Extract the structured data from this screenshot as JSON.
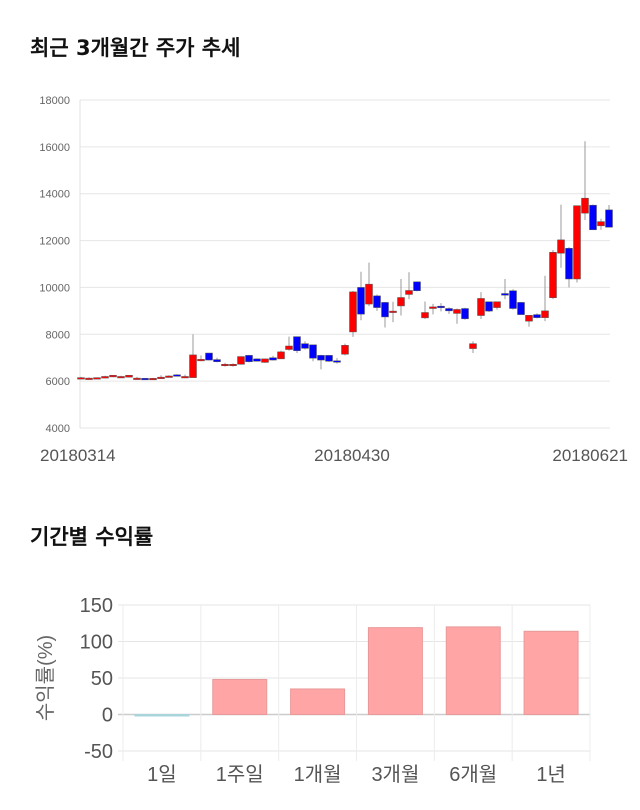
{
  "chart_data": [
    {
      "type": "candlestick",
      "title": "최근 3개월간 주가 추세",
      "ylim": [
        4000,
        18000
      ],
      "yticks": [
        "4000",
        "6000",
        "8000",
        "10000",
        "12000",
        "14000",
        "16000",
        "18000"
      ],
      "xtick_labels": [
        {
          "label": "20180314",
          "index": 0
        },
        {
          "label": "20180430",
          "index": 33
        },
        {
          "label": "20180621",
          "index": 66
        }
      ],
      "up_color": "#ff0000",
      "down_color": "#0000ff",
      "ohlc": [
        [
          6150,
          6180,
          6130,
          6150
        ],
        [
          6130,
          6160,
          6100,
          6130
        ],
        [
          6120,
          6160,
          6100,
          6150
        ],
        [
          6130,
          6230,
          6120,
          6200
        ],
        [
          6180,
          6260,
          6170,
          6250
        ],
        [
          6200,
          6230,
          6180,
          6200
        ],
        [
          6170,
          6260,
          6160,
          6250
        ],
        [
          6130,
          6180,
          6100,
          6130
        ],
        [
          6120,
          6130,
          6070,
          6080
        ],
        [
          6120,
          6140,
          6100,
          6120
        ],
        [
          6110,
          6250,
          6100,
          6170
        ],
        [
          6220,
          6250,
          6200,
          6220
        ],
        [
          6270,
          6300,
          6220,
          6230
        ],
        [
          6200,
          6280,
          6180,
          6200
        ],
        [
          6150,
          8000,
          6150,
          7120
        ],
        [
          6930,
          7100,
          6850,
          6930
        ],
        [
          7200,
          7200,
          6880,
          6900
        ],
        [
          6920,
          7000,
          6800,
          6830
        ],
        [
          6720,
          6780,
          6620,
          6720
        ],
        [
          6720,
          6760,
          6620,
          6720
        ],
        [
          6720,
          7050,
          6700,
          7050
        ],
        [
          7100,
          7120,
          6800,
          6830
        ],
        [
          6950,
          6970,
          6840,
          6850
        ],
        [
          6800,
          6960,
          6780,
          6950
        ],
        [
          7000,
          7080,
          6880,
          6900
        ],
        [
          6950,
          7300,
          6950,
          7250
        ],
        [
          7350,
          7900,
          7300,
          7500
        ],
        [
          7900,
          7900,
          7200,
          7300
        ],
        [
          7600,
          7700,
          7350,
          7400
        ],
        [
          7550,
          7550,
          6850,
          6980
        ],
        [
          7100,
          7120,
          6500,
          6900
        ],
        [
          7100,
          7100,
          6820,
          6850
        ],
        [
          6870,
          6980,
          6750,
          6840
        ],
        [
          7150,
          7600,
          7100,
          7530
        ],
        [
          8100,
          9850,
          7890,
          9810
        ],
        [
          10000,
          10670,
          8600,
          8860
        ],
        [
          9290,
          11060,
          9200,
          10140
        ],
        [
          9640,
          9700,
          9000,
          9140
        ],
        [
          9360,
          9380,
          8290,
          8740
        ],
        [
          8990,
          9390,
          8520,
          8990
        ],
        [
          9210,
          10360,
          8800,
          9570
        ],
        [
          9700,
          10650,
          9500,
          9870
        ],
        [
          10240,
          10260,
          9830,
          9860
        ],
        [
          8700,
          9400,
          8650,
          8930
        ],
        [
          9100,
          9300,
          8850,
          9170
        ],
        [
          9200,
          9330,
          8980,
          9140
        ],
        [
          9100,
          9150,
          8870,
          9000
        ],
        [
          8890,
          9100,
          8450,
          9060
        ],
        [
          9100,
          9130,
          8620,
          8660
        ],
        [
          7390,
          7700,
          7200,
          7600
        ],
        [
          8800,
          9800,
          8650,
          9530
        ],
        [
          9390,
          9400,
          8950,
          8990
        ],
        [
          9140,
          9400,
          9050,
          9390
        ],
        [
          9740,
          10360,
          9500,
          9670
        ],
        [
          9860,
          9920,
          9050,
          9100
        ],
        [
          9360,
          9380,
          8840,
          8840
        ],
        [
          8560,
          8810,
          8320,
          8810
        ],
        [
          8840,
          8900,
          8680,
          8710
        ],
        [
          8710,
          10500,
          8560,
          9000
        ],
        [
          9560,
          11600,
          9500,
          11500
        ],
        [
          11460,
          13530,
          10840,
          12030
        ],
        [
          11670,
          11720,
          10000,
          10360
        ],
        [
          10360,
          13490,
          10210,
          13490
        ],
        [
          13170,
          16240,
          12880,
          13810
        ],
        [
          13510,
          13540,
          12460,
          12460
        ],
        [
          12630,
          12930,
          12460,
          12810
        ],
        [
          13310,
          13520,
          12570,
          12570
        ]
      ]
    },
    {
      "type": "bar",
      "title": "기간별 수익률",
      "ylabel": "수익률(%)",
      "ylim": [
        -60,
        150
      ],
      "yticks": [
        "-50",
        "0",
        "50",
        "100",
        "150"
      ],
      "categories": [
        "1일",
        "1주일",
        "1개월",
        "3개월",
        "6개월",
        "1년"
      ],
      "values": [
        -0.5,
        48,
        35,
        119,
        120,
        114
      ],
      "pos_color": "#ffa5a5",
      "neg_color": "#a8d4dc"
    }
  ]
}
